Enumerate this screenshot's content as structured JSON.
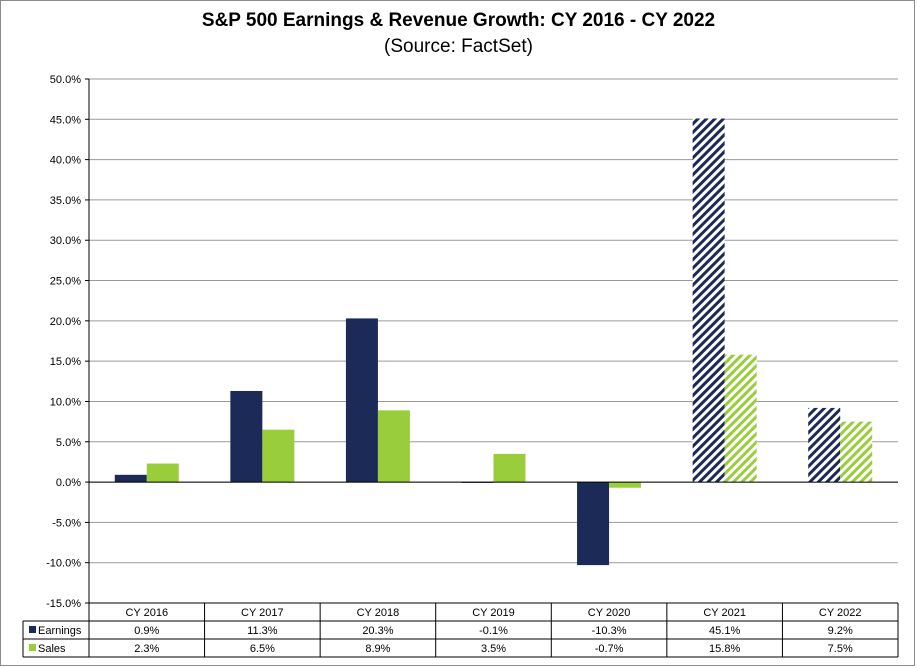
{
  "chart_data": {
    "type": "bar",
    "title": "S&P 500 Earnings & Revenue Growth:  CY 2016 - CY 2022",
    "subtitle": "(Source: FactSet)",
    "categories": [
      "CY 2016",
      "CY 2017",
      "CY 2018",
      "CY 2019",
      "CY 2020",
      "CY 2021",
      "CY 2022"
    ],
    "series": [
      {
        "name": "Earnings",
        "color": "#1b2a56",
        "values": [
          0.9,
          11.3,
          20.3,
          -0.1,
          -10.3,
          45.1,
          9.2
        ],
        "labels": [
          "0.9%",
          "11.3%",
          "20.3%",
          "-0.1%",
          "-10.3%",
          "45.1%",
          "9.2%"
        ]
      },
      {
        "name": "Sales",
        "color": "#9acd3c",
        "values": [
          2.3,
          6.5,
          8.9,
          3.5,
          -0.7,
          15.8,
          7.5
        ],
        "labels": [
          "2.3%",
          "6.5%",
          "8.9%",
          "3.5%",
          "-0.7%",
          "15.8%",
          "7.5%"
        ]
      }
    ],
    "estimated_categories": [
      "CY 2021",
      "CY 2022"
    ],
    "ylim": [
      -15,
      50
    ],
    "yticks": [
      50,
      45,
      40,
      35,
      30,
      25,
      20,
      15,
      10,
      5,
      0,
      -5,
      -10,
      -15
    ],
    "ytick_labels": [
      "50.0%",
      "45.0%",
      "40.0%",
      "35.0%",
      "30.0%",
      "25.0%",
      "20.0%",
      "15.0%",
      "10.0%",
      "5.0%",
      "0.0%",
      "-5.0%",
      "-10.0%",
      "-15.0%"
    ],
    "grid": true,
    "legend": "data-table"
  }
}
